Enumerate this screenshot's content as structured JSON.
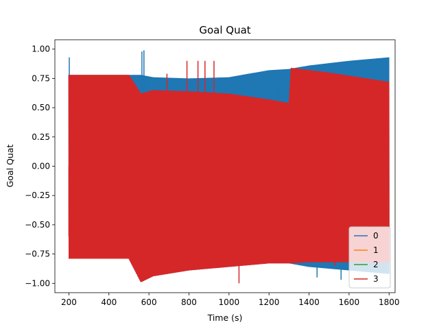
{
  "chart_data": {
    "type": "line",
    "title": "Goal Quat",
    "xlabel": "Time (s)",
    "ylabel": "Goal Quat",
    "xlim": [
      130,
      1830
    ],
    "ylim": [
      -1.08,
      1.08
    ],
    "xticks": [
      200,
      400,
      600,
      800,
      1000,
      1200,
      1400,
      1600,
      1800
    ],
    "yticks": [
      -1.0,
      -0.75,
      -0.5,
      -0.25,
      0.0,
      0.25,
      0.5,
      0.75,
      1.0
    ],
    "xtick_labels": [
      "200",
      "400",
      "600",
      "800",
      "1000",
      "1200",
      "1400",
      "1600",
      "1800"
    ],
    "ytick_labels": [
      "−1.00",
      "−0.75",
      "−0.50",
      "−0.25",
      "0.00",
      "0.25",
      "0.50",
      "0.75",
      "1.00"
    ],
    "grid": false,
    "legend_position": "lower right",
    "series": [
      {
        "name": "0",
        "color": "#1f77b4",
        "band_upper": {
          "x": [
            200,
            500,
            560,
            620,
            800,
            1000,
            1200,
            1300,
            1400,
            1600,
            1800
          ],
          "y": [
            0.78,
            0.78,
            0.78,
            0.76,
            0.75,
            0.76,
            0.82,
            0.83,
            0.86,
            0.9,
            0.93
          ]
        },
        "band_lower": {
          "x": [
            200,
            500,
            560,
            620,
            800,
            1000,
            1200,
            1300,
            1400,
            1600,
            1800
          ],
          "y": [
            -0.79,
            -0.79,
            -0.99,
            -0.94,
            -0.89,
            -0.86,
            -0.83,
            -0.83,
            -0.86,
            -0.89,
            -0.92
          ]
        },
        "spikes": [
          {
            "x": 202,
            "y0": 0.5,
            "y1": 0.93
          },
          {
            "x": 565,
            "y0": 0.65,
            "y1": 0.98
          },
          {
            "x": 575,
            "y0": 0.65,
            "y1": 0.99
          },
          {
            "x": 1245,
            "y0": 0.0,
            "y1": 0.7
          },
          {
            "x": 1440,
            "y0": -0.95,
            "y1": -0.8
          },
          {
            "x": 1560,
            "y0": -0.97,
            "y1": -0.84
          },
          {
            "x": 1790,
            "y0": -0.6,
            "y1": -0.4
          }
        ]
      },
      {
        "name": "1",
        "color": "#ff7f0e",
        "x": [
          200,
          1800
        ],
        "y": [
          0.0,
          0.0
        ]
      },
      {
        "name": "2",
        "color": "#2ca02c",
        "x": [
          200,
          1800
        ],
        "y": [
          0.0,
          0.0
        ]
      },
      {
        "name": "3",
        "color": "#d62728",
        "band_upper": {
          "x": [
            200,
            500,
            560,
            620,
            800,
            1000,
            1200,
            1300,
            1310,
            1500,
            1800
          ],
          "y": [
            0.78,
            0.78,
            0.62,
            0.65,
            0.64,
            0.62,
            0.57,
            0.54,
            0.84,
            0.8,
            0.72
          ]
        },
        "band_lower": {
          "x": [
            200,
            500,
            560,
            620,
            800,
            1000,
            1200,
            1300,
            1400,
            1600,
            1800
          ],
          "y": [
            -0.79,
            -0.79,
            -0.99,
            -0.94,
            -0.89,
            -0.86,
            -0.83,
            -0.83,
            -0.82,
            -0.82,
            -0.82
          ]
        },
        "spikes": [
          {
            "x": 200,
            "y0": -0.6,
            "y1": 0.0
          },
          {
            "x": 690,
            "y0": 0.6,
            "y1": 0.79
          },
          {
            "x": 790,
            "y0": 0.6,
            "y1": 0.9
          },
          {
            "x": 845,
            "y0": 0.6,
            "y1": 0.9
          },
          {
            "x": 880,
            "y0": 0.6,
            "y1": 0.9
          },
          {
            "x": 925,
            "y0": 0.6,
            "y1": 0.9
          },
          {
            "x": 1050,
            "y0": -1.0,
            "y1": -0.85
          },
          {
            "x": 1250,
            "y0": -0.55,
            "y1": -0.2
          },
          {
            "x": 1385,
            "y0": -0.8,
            "y1": 0.6
          },
          {
            "x": 1460,
            "y0": -0.8,
            "y1": 0.6
          },
          {
            "x": 1530,
            "y0": -0.85,
            "y1": 0.6
          },
          {
            "x": 1635,
            "y0": -0.85,
            "y1": 0.45
          },
          {
            "x": 1710,
            "y0": -0.85,
            "y1": 0.4
          },
          {
            "x": 1745,
            "y0": -0.85,
            "y1": 0.38
          }
        ]
      }
    ]
  }
}
